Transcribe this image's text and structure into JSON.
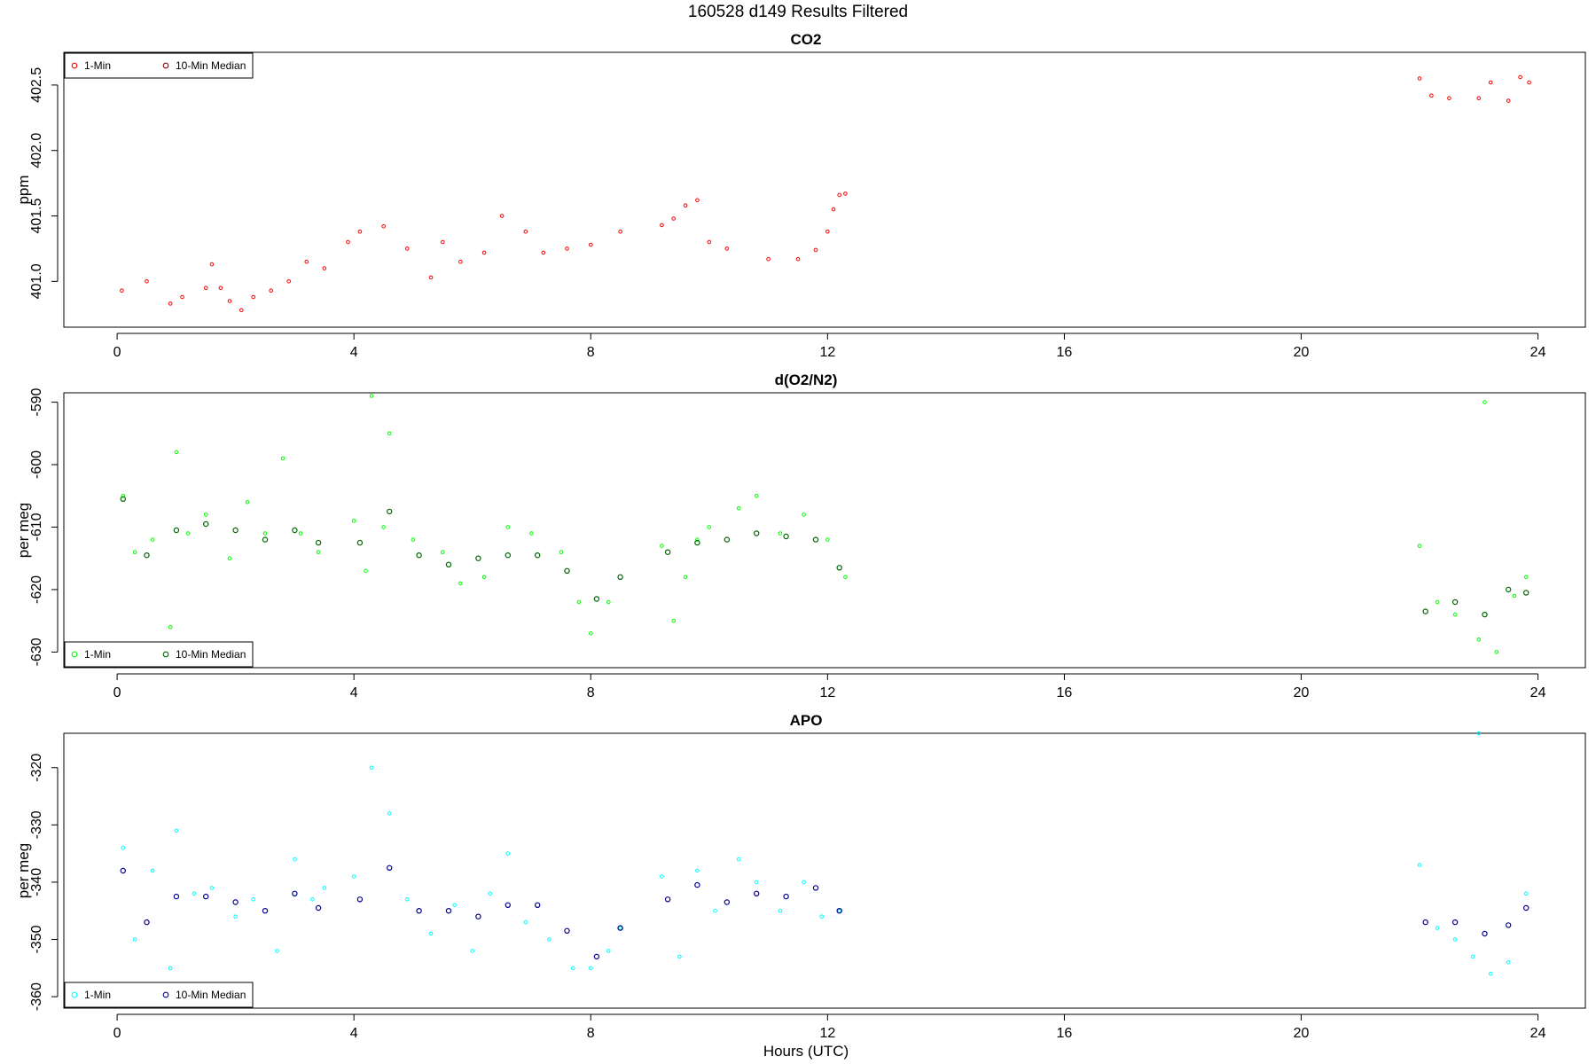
{
  "suptitle": "160528   d149   Results Filtered",
  "xlabel": "Hours (UTC)",
  "chart_data": [
    {
      "type": "scatter",
      "title": "CO2",
      "ylabel": "ppm",
      "xlim": [
        -0.9,
        24.8
      ],
      "ylim": [
        400.65,
        402.75
      ],
      "xticks": [
        0,
        4,
        8,
        12,
        16,
        20,
        24
      ],
      "yticks": [
        401.0,
        401.5,
        402.0,
        402.5
      ],
      "ytick_labels": [
        "401.0",
        "401.5",
        "402.0",
        "402.5"
      ],
      "legend": {
        "position": "top-left",
        "entries": [
          "1-Min",
          "10-Min Median"
        ]
      },
      "series": [
        {
          "name": "1-Min",
          "color": "#ff0000",
          "style": "1-min",
          "x": [
            0.08,
            0.5,
            0.9,
            1.1,
            1.5,
            1.6,
            1.75,
            1.9,
            2.1,
            2.3,
            2.6,
            2.9,
            3.2,
            3.5,
            3.9,
            4.1,
            4.5,
            4.9,
            5.3,
            5.5,
            5.8,
            6.2,
            6.5,
            6.9,
            7.2,
            7.6,
            8.0,
            8.5,
            9.2,
            9.4,
            9.6,
            9.8,
            10.0,
            10.3,
            11.0,
            11.5,
            11.8,
            12.0,
            12.1,
            12.2,
            12.3,
            22.0,
            22.2,
            22.5,
            23.0,
            23.2,
            23.5,
            23.7,
            23.85
          ],
          "y": [
            400.93,
            401.0,
            400.83,
            400.88,
            400.95,
            401.13,
            400.95,
            400.85,
            400.78,
            400.88,
            400.93,
            401.0,
            401.15,
            401.1,
            401.3,
            401.38,
            401.42,
            401.25,
            401.03,
            401.3,
            401.15,
            401.22,
            401.5,
            401.38,
            401.22,
            401.25,
            401.28,
            401.38,
            401.43,
            401.48,
            401.58,
            401.62,
            401.3,
            401.25,
            401.17,
            401.17,
            401.24,
            401.38,
            401.55,
            401.66,
            401.67,
            402.55,
            402.42,
            402.4,
            402.4,
            402.52,
            402.38,
            402.56,
            402.52
          ]
        },
        {
          "name": "10-Min Median",
          "color": "#8b0000",
          "style": "median",
          "x": [],
          "y": []
        }
      ]
    },
    {
      "type": "scatter",
      "title": "d(O2/N2)",
      "ylabel": "per meg",
      "xlim": [
        -0.9,
        24.8
      ],
      "ylim": [
        -632.5,
        -588.5
      ],
      "xticks": [
        0,
        4,
        8,
        12,
        16,
        20,
        24
      ],
      "yticks": [
        -590,
        -600,
        -610,
        -620,
        -630
      ],
      "ytick_labels": [
        "-590",
        "-600",
        "-610",
        "-620",
        "-630"
      ],
      "legend": {
        "position": "bottom-left",
        "entries": [
          "1-Min",
          "10-Min Median"
        ]
      },
      "series": [
        {
          "name": "1-Min",
          "color": "#00ff00",
          "style": "1-min",
          "x": [
            0.1,
            0.3,
            0.6,
            0.9,
            1.0,
            1.2,
            1.5,
            1.9,
            2.2,
            2.5,
            2.8,
            3.1,
            3.4,
            4.0,
            4.2,
            4.3,
            4.5,
            4.6,
            5.0,
            5.5,
            5.8,
            6.2,
            6.6,
            7.0,
            7.5,
            7.8,
            8.0,
            8.3,
            9.2,
            9.4,
            9.6,
            9.8,
            10.0,
            10.5,
            10.8,
            11.2,
            11.6,
            12.0,
            12.3,
            22.0,
            22.3,
            22.6,
            23.0,
            23.1,
            23.3,
            23.6,
            23.8
          ],
          "y": [
            -605,
            -614,
            -612,
            -626,
            -598,
            -611,
            -608,
            -615,
            -606,
            -611,
            -599,
            -611,
            -614,
            -609,
            -617,
            -589,
            -610,
            -595,
            -612,
            -614,
            -619,
            -618,
            -610,
            -611,
            -614,
            -622,
            -627,
            -622,
            -613,
            -625,
            -618,
            -612,
            -610,
            -607,
            -605,
            -611,
            -608,
            -612,
            -618,
            -613,
            -622,
            -624,
            -628,
            -590,
            -630,
            -621,
            -618
          ]
        },
        {
          "name": "10-Min Median",
          "color": "#006400",
          "style": "median",
          "x": [
            0.1,
            0.5,
            1.0,
            1.5,
            2.0,
            2.5,
            3.0,
            3.4,
            4.1,
            4.6,
            5.1,
            5.6,
            6.1,
            6.6,
            7.1,
            7.6,
            8.1,
            8.5,
            9.3,
            9.8,
            10.3,
            10.8,
            11.3,
            11.8,
            12.2,
            22.1,
            22.6,
            23.1,
            23.5,
            23.8
          ],
          "y": [
            -605.5,
            -614.5,
            -610.5,
            -609.5,
            -610.5,
            -612,
            -610.5,
            -612.5,
            -612.5,
            -607.5,
            -614.5,
            -616,
            -615,
            -614.5,
            -614.5,
            -617,
            -621.5,
            -618,
            -614,
            -612.5,
            -612,
            -611,
            -611.5,
            -612,
            -616.5,
            -623.5,
            -622,
            -624,
            -620,
            -620.5
          ]
        }
      ]
    },
    {
      "type": "scatter",
      "title": "APO",
      "ylabel": "per meg",
      "xlim": [
        -0.9,
        24.8
      ],
      "ylim": [
        -362,
        -314
      ],
      "xticks": [
        0,
        4,
        8,
        12,
        16,
        20,
        24
      ],
      "yticks": [
        -320,
        -330,
        -340,
        -350,
        -360
      ],
      "ytick_labels": [
        "-320",
        "-330",
        "-340",
        "-350",
        "-360"
      ],
      "legend": {
        "position": "bottom-left",
        "entries": [
          "1-Min",
          "10-Min Median"
        ]
      },
      "series": [
        {
          "name": "1-Min",
          "color": "#00ffff",
          "style": "1-min",
          "x": [
            0.1,
            0.3,
            0.6,
            0.9,
            1.0,
            1.3,
            1.6,
            2.0,
            2.3,
            2.7,
            3.0,
            3.3,
            3.5,
            4.0,
            4.3,
            4.6,
            4.9,
            5.3,
            5.7,
            6.0,
            6.3,
            6.6,
            6.9,
            7.3,
            7.7,
            8.0,
            8.3,
            8.5,
            9.2,
            9.5,
            9.8,
            10.1,
            10.5,
            10.8,
            11.2,
            11.6,
            11.9,
            12.2,
            22.0,
            22.3,
            22.6,
            22.9,
            23.0,
            23.2,
            23.5,
            23.8
          ],
          "y": [
            -334,
            -350,
            -338,
            -355,
            -331,
            -342,
            -341,
            -346,
            -343,
            -352,
            -336,
            -343,
            -341,
            -339,
            -320,
            -328,
            -343,
            -349,
            -344,
            -352,
            -342,
            -335,
            -347,
            -350,
            -355,
            -355,
            -352,
            -348,
            -339,
            -353,
            -338,
            -345,
            -336,
            -340,
            -345,
            -340,
            -346,
            -345,
            -337,
            -348,
            -350,
            -353,
            -314,
            -356,
            -354,
            -342
          ]
        },
        {
          "name": "10-Min Median",
          "color": "#00008b",
          "style": "median",
          "x": [
            0.1,
            0.5,
            1.0,
            1.5,
            2.0,
            2.5,
            3.0,
            3.4,
            4.1,
            4.6,
            5.1,
            5.6,
            6.1,
            6.6,
            7.1,
            7.6,
            8.1,
            8.5,
            9.3,
            9.8,
            10.3,
            10.8,
            11.3,
            11.8,
            12.2,
            22.1,
            22.6,
            23.1,
            23.5,
            23.8
          ],
          "y": [
            -338,
            -347,
            -342.5,
            -342.5,
            -343.5,
            -345,
            -342,
            -344.5,
            -343,
            -337.5,
            -345,
            -345,
            -346,
            -344,
            -344,
            -348.5,
            -353,
            -348,
            -343,
            -340.5,
            -343.5,
            -342,
            -342.5,
            -341,
            -345,
            -347,
            -347,
            -349,
            -347.5,
            -344.5
          ]
        }
      ]
    }
  ]
}
